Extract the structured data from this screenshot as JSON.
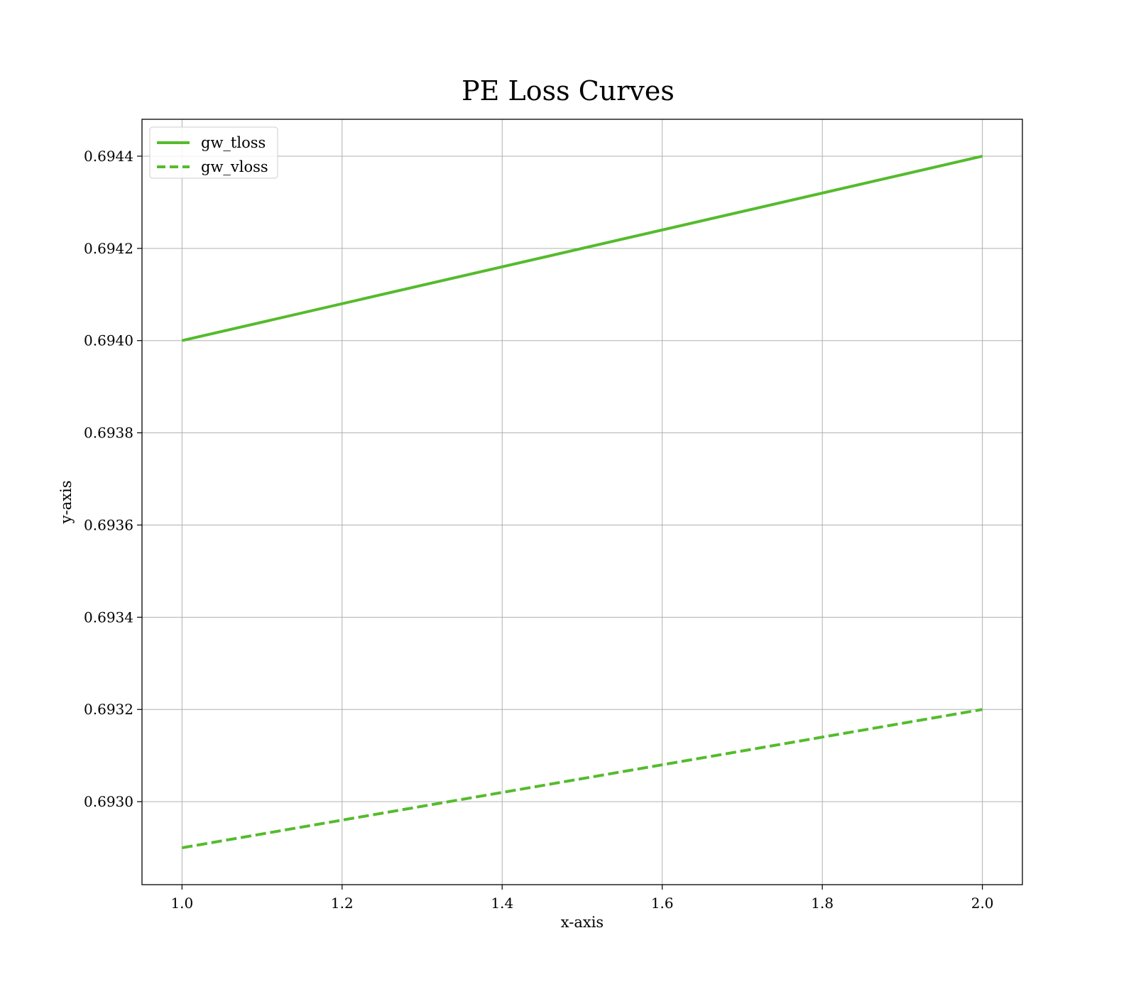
{
  "chart_data": {
    "type": "line",
    "title": "PE Loss Curves",
    "xlabel": "x-axis",
    "ylabel": "y-axis",
    "xlim": [
      0.95,
      2.05
    ],
    "ylim": [
      0.69282,
      0.69448
    ],
    "xticks": [
      1.0,
      1.2,
      1.4,
      1.6,
      1.8,
      2.0
    ],
    "xtick_labels": [
      "1.0",
      "1.2",
      "1.4",
      "1.6",
      "1.8",
      "2.0"
    ],
    "yticks": [
      0.693,
      0.6932,
      0.6934,
      0.6936,
      0.6938,
      0.694,
      0.6942,
      0.6944
    ],
    "ytick_labels": [
      "0.6930",
      "0.6932",
      "0.6934",
      "0.6936",
      "0.6938",
      "0.6940",
      "0.6942",
      "0.6944"
    ],
    "grid": true,
    "legend_position": "top-left",
    "series": [
      {
        "name": "gw_tloss",
        "x": [
          1.0,
          2.0
        ],
        "y": [
          0.694,
          0.6944
        ],
        "color": "#55bb2d",
        "style": "solid"
      },
      {
        "name": "gw_vloss",
        "x": [
          1.0,
          2.0
        ],
        "y": [
          0.6929,
          0.6932
        ],
        "color": "#55bb2d",
        "style": "dashed"
      }
    ]
  }
}
